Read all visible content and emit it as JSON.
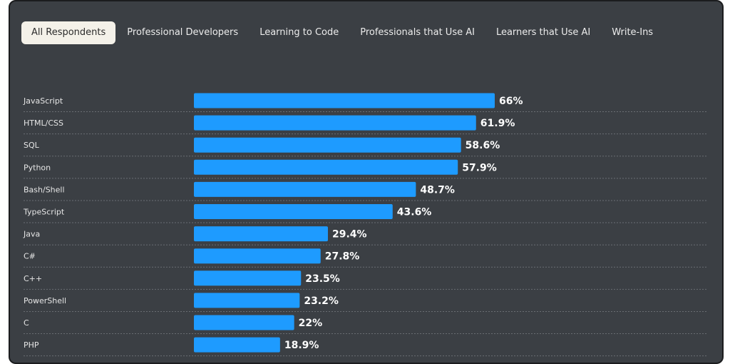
{
  "tabs": [
    {
      "label": "All Respondents",
      "active": true
    },
    {
      "label": "Professional Developers",
      "active": false
    },
    {
      "label": "Learning to Code",
      "active": false
    },
    {
      "label": "Professionals that Use AI",
      "active": false
    },
    {
      "label": "Learners that Use AI",
      "active": false
    },
    {
      "label": "Write-Ins",
      "active": false
    }
  ],
  "colors": {
    "bar": "#1e9bff",
    "panel_bg": "#3b3f44",
    "active_tab_bg": "#f4f1e9"
  },
  "chart_data": {
    "type": "bar",
    "orientation": "horizontal",
    "categories": [
      "JavaScript",
      "HTML/CSS",
      "SQL",
      "Python",
      "Bash/Shell",
      "TypeScript",
      "Java",
      "C#",
      "C++",
      "PowerShell",
      "C",
      "PHP"
    ],
    "values": [
      66,
      61.9,
      58.6,
      57.9,
      48.7,
      43.6,
      29.4,
      27.8,
      23.5,
      23.2,
      22,
      18.9
    ],
    "value_labels": [
      "66%",
      "61.9%",
      "58.6%",
      "57.9%",
      "48.7%",
      "43.6%",
      "29.4%",
      "27.8%",
      "23.5%",
      "23.2%",
      "22%",
      "18.9%"
    ],
    "unit": "%",
    "xlim": [
      0,
      100
    ],
    "title": "",
    "xlabel": "",
    "ylabel": ""
  }
}
